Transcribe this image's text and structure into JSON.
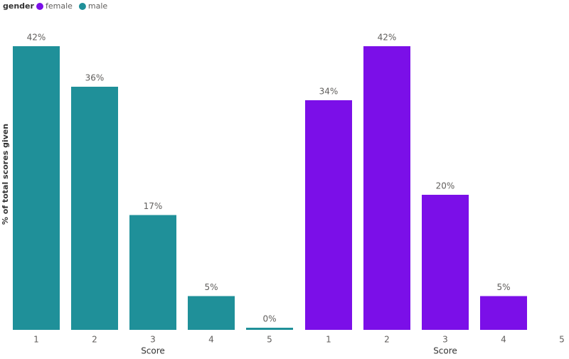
{
  "chart_data": {
    "type": "bar",
    "legend_title": "gender",
    "y_label": "% of total scores given",
    "series": [
      {
        "name": "female",
        "color": "#7b0fe8",
        "x_label": "Score",
        "categories": [
          "1",
          "2",
          "3",
          "4",
          "5"
        ],
        "values": [
          34,
          42,
          20,
          5,
          null
        ],
        "value_labels": [
          "34%",
          "42%",
          "20%",
          "5%",
          null
        ]
      },
      {
        "name": "male",
        "color": "#1f9099",
        "x_label": "Score",
        "categories": [
          "1",
          "2",
          "3",
          "4",
          "5"
        ],
        "values": [
          42,
          36,
          17,
          5,
          0
        ],
        "value_labels": [
          "42%",
          "36%",
          "17%",
          "5%",
          "0%"
        ]
      }
    ]
  }
}
